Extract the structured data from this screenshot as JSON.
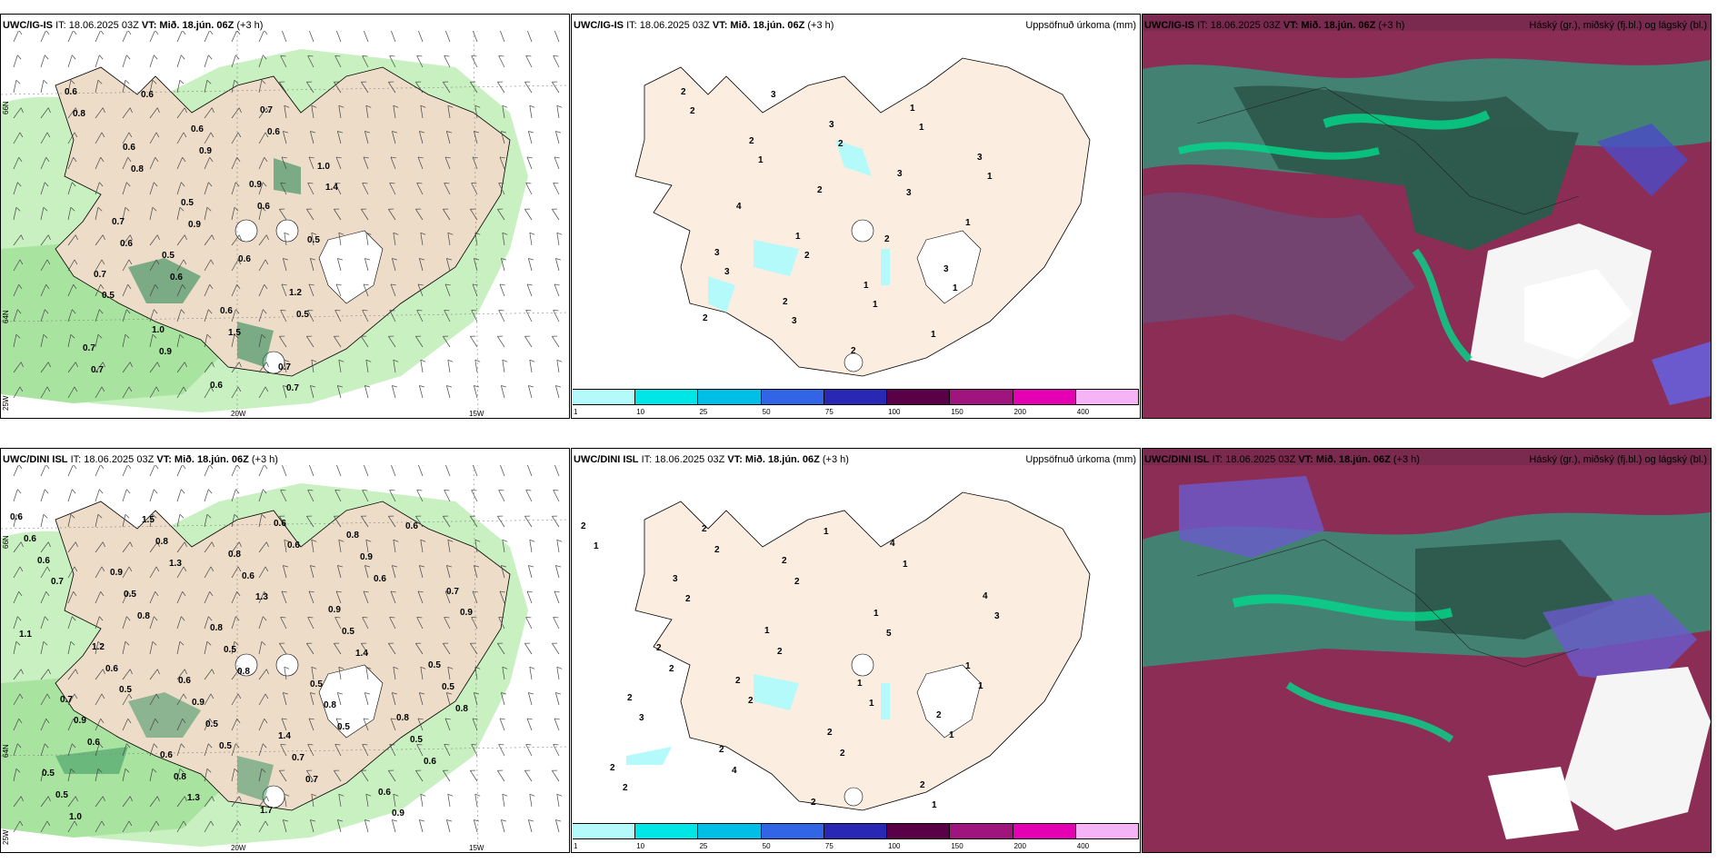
{
  "panels": {
    "p1": {
      "model": "UWC/IG-IS",
      "it": "IT: 18.06.2025 03Z",
      "vt": "VT: Mið. 18.jún. 06Z",
      "lead": "(+3 h)"
    },
    "p2": {
      "model": "UWC/IG-IS",
      "it": "IT: 18.06.2025 03Z",
      "vt": "VT: Mið. 18.jún. 06Z",
      "lead": "(+3 h)",
      "right": "Uppsöfnuð úrkoma (mm)"
    },
    "p3": {
      "model": "UWC/IG-IS",
      "it": "IT: 18.06.2025 03Z",
      "vt": "VT: Mið. 18.jún. 06Z",
      "lead": "(+3 h)",
      "right": "Háský (gr.), miðský (fj.bl.) og lágský (bl.)"
    },
    "p4": {
      "model": "UWC/DINI ISL",
      "it": "IT: 18.06.2025 03Z",
      "vt": "VT: Mið. 18.jún. 06Z",
      "lead": "(+3 h)"
    },
    "p5": {
      "model": "UWC/DINI ISL",
      "it": "IT: 18.06.2025 03Z",
      "vt": "VT: Mið. 18.jún. 06Z",
      "lead": "(+3 h)",
      "right": "Uppsöfnuð úrkoma (mm)"
    },
    "p6": {
      "model": "UWC/DINI ISL",
      "it": "IT: 18.06.2025 03Z",
      "vt": "VT: Mið. 18.jún. 06Z",
      "lead": "(+3 h)",
      "right": "Háský (gr.), miðský (fj.bl.) og lágský (bl.)"
    }
  },
  "axes": {
    "lon_20": "20W",
    "lon_15": "15W",
    "lat_66": "66N",
    "lat_64": "64N",
    "lon_25": "25W"
  },
  "colorbar": {
    "ticks": [
      "1",
      "10",
      "25",
      "50",
      "75",
      "100",
      "150",
      "200",
      "400"
    ],
    "colors": [
      "#b4fafa",
      "#00e6e6",
      "#00bfe6",
      "#3264e6",
      "#2828b4",
      "#5a0046",
      "#a0147d",
      "#e600b4",
      "#f5b4f5"
    ]
  },
  "labels": {
    "p1": [
      "0.6",
      "0.5",
      "0.7",
      "0.7",
      "0.6",
      "1.2",
      "0.6",
      "0.6",
      "1.0",
      "1.0",
      "0.9",
      "0.7",
      "0.5",
      "0.7",
      "0.7",
      "0.6",
      "0.5",
      "0.6",
      "0.6",
      "0.8",
      "0.6",
      "0.6",
      "0.5",
      "0.9",
      "0.5",
      "0.8",
      "1.5",
      "1.4",
      "0.9",
      "0.6",
      "0.7",
      "0.9",
      "0.7",
      "0.6"
    ],
    "p2": [
      "2",
      "1",
      "1",
      "3",
      "3",
      "3",
      "2",
      "1",
      "3",
      "2",
      "3",
      "2",
      "2",
      "1",
      "4",
      "2",
      "1",
      "3",
      "2",
      "2",
      "2",
      "1",
      "3",
      "2",
      "1",
      "1",
      "1",
      "1",
      "3",
      "3"
    ],
    "p4": [
      "0.6",
      "0.6",
      "0.8",
      "0.7",
      "0.8",
      "0.8",
      "0.9",
      "1.4",
      "0.7",
      "0.6",
      "0.9",
      "0.5",
      "0.8",
      "0.6",
      "1.2",
      "1.7",
      "0.5",
      "1.5",
      "0.5",
      "0.6",
      "0.9",
      "0.9",
      "0.9",
      "0.6",
      "0.5",
      "0.5",
      "0.7",
      "0.9",
      "0.8",
      "0.5",
      "0.5",
      "0.5",
      "0.9",
      "0.6",
      "0.6",
      "0.5",
      "0.8",
      "0.8",
      "0.6",
      "0.5",
      "0.6",
      "0.6",
      "1.3",
      "0.6",
      "0.8",
      "0.7",
      "1.1",
      "1.3",
      "1.4",
      "1.0",
      "0.8",
      "0.6",
      "0.5",
      "0.6",
      "0.8",
      "1.3",
      "0.5",
      "0.7",
      "0.5"
    ],
    "p5": [
      "2",
      "2",
      "4",
      "2",
      "2",
      "2",
      "3",
      "2",
      "4",
      "2",
      "1",
      "2",
      "1",
      "2",
      "2",
      "2",
      "1",
      "2",
      "1",
      "1",
      "2",
      "1",
      "3",
      "2",
      "1",
      "2",
      "2",
      "3",
      "4",
      "5",
      "2",
      "2",
      "1",
      "2",
      "1",
      "1",
      "2",
      "1"
    ]
  }
}
